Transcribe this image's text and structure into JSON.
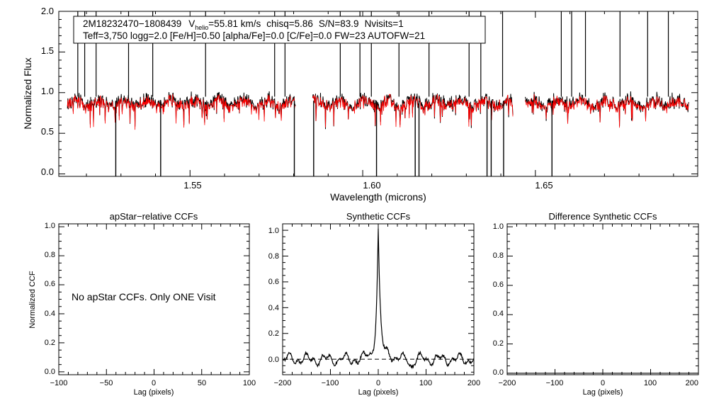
{
  "colors": {
    "observed": "#000000",
    "model": "#ff0000"
  },
  "info_box": {
    "star_id": "2M18232470−1808439",
    "vhelio_prefix": "V",
    "vhelio_sub": "helio",
    "vhelio_value": "=55.81 km/s",
    "chisq": "chisq=5.86",
    "snr": "S/N=83.9",
    "nvisits": "Nvisits=1",
    "params_line": "Teff=3,750 logg=2.0 [Fe/H]=0.50 [alpha/Fe]=0.0 [C/Fe]=0.0 FW=23 AUTOFW=21"
  },
  "chart_data": [
    {
      "type": "line",
      "name": "spectrum",
      "title": "",
      "xlabel": "Wavelength (microns)",
      "ylabel": "Normalized Flux",
      "xlim": [
        1.512,
        1.697
      ],
      "ylim": [
        -0.03,
        2.0
      ],
      "x_ticks": [
        1.55,
        1.6,
        1.65
      ],
      "x_tick_labels": [
        "1.55",
        "1.60",
        "1.65"
      ],
      "y_ticks": [
        0.0,
        0.5,
        1.0,
        1.5,
        2.0
      ],
      "y_tick_labels": [
        "0.0",
        "0.5",
        "1.0",
        "1.5",
        "2.0"
      ],
      "series": [
        {
          "name": "observed",
          "color": "black"
        },
        {
          "name": "model",
          "color": "red"
        }
      ],
      "chip_ranges": [
        [
          1.5145,
          1.5805
        ],
        [
          1.5855,
          1.6435
        ],
        [
          1.647,
          1.6945
        ]
      ],
      "spikes_up": [
        1.5175,
        1.5195,
        1.5228,
        1.5322,
        1.5392,
        1.5545,
        1.5745,
        1.5775,
        1.5935,
        1.5992,
        1.6025,
        1.6105,
        1.6192,
        1.6308,
        1.6342,
        1.6405,
        1.6575,
        1.6605,
        1.6645,
        1.6745,
        1.6825,
        1.6885
      ],
      "spikes_down": [
        1.5285,
        1.5415,
        1.5802,
        1.5858,
        1.604,
        1.6152,
        1.6163,
        1.636,
        1.6372,
        1.6408,
        1.6548
      ]
    },
    {
      "type": "line",
      "name": "apstar-ccf",
      "title": "apStar−relative CCFs",
      "xlabel": "Lag (pixels)",
      "ylabel": "Normalized CCF",
      "xlim": [
        -100,
        100
      ],
      "ylim": [
        -0.02,
        1.02
      ],
      "x_ticks": [
        -100,
        -50,
        0,
        50,
        100
      ],
      "x_tick_labels": [
        "−100",
        "−50",
        "0",
        "50",
        "100"
      ],
      "y_ticks": [
        0.0,
        0.2,
        0.4,
        0.6,
        0.8,
        1.0
      ],
      "y_tick_labels": [
        "0.0",
        "0.2",
        "0.4",
        "0.6",
        "0.8",
        "1.0"
      ],
      "annotation": "No apStar CCFs.  Only ONE Visit"
    },
    {
      "type": "line",
      "name": "synthetic-ccf",
      "title": "Synthetic CCFs",
      "xlabel": "Lag (pixels)",
      "ylabel": "",
      "xlim": [
        -200,
        200
      ],
      "ylim": [
        -0.12,
        1.05
      ],
      "x_ticks": [
        -200,
        -100,
        0,
        100,
        200
      ],
      "x_tick_labels": [
        "−200",
        "−100",
        "0",
        "100",
        "200"
      ],
      "y_ticks": [
        0.0,
        0.2,
        0.4,
        0.6,
        0.8,
        1.0
      ],
      "y_tick_labels": [
        "0.0",
        "0.2",
        "0.4",
        "0.6",
        "0.8",
        "1.0"
      ],
      "peak": {
        "lag": 0,
        "value": 1.0
      },
      "zero_line": true
    },
    {
      "type": "line",
      "name": "difference-ccf",
      "title": "Difference Synthetic CCFs",
      "xlabel": "Lag (pixels)",
      "ylabel": "",
      "xlim": [
        -200,
        200
      ],
      "ylim": [
        -0.01,
        1.02
      ],
      "x_ticks": [
        -200,
        -100,
        0,
        100,
        200
      ],
      "x_tick_labels": [
        "−200",
        "−100",
        "0",
        "100",
        "200"
      ],
      "y_ticks": [
        0.0,
        0.2,
        0.4,
        0.6,
        0.8,
        1.0
      ],
      "y_tick_labels": [
        "0.0",
        "0.2",
        "0.4",
        "0.6",
        "0.8",
        "1.0"
      ]
    }
  ]
}
